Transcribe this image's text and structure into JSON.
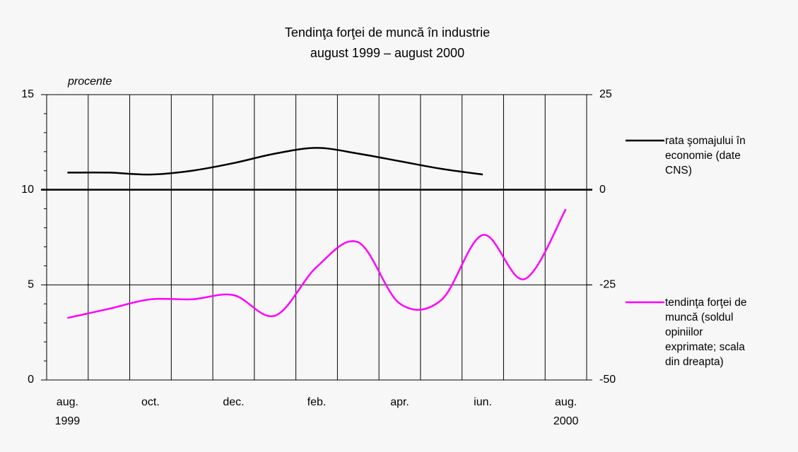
{
  "chart_data": {
    "type": "line",
    "title": "Tendinţa forţei de muncă în industrie",
    "subtitle": "august 1999 – august 2000",
    "y_label": "procente",
    "categories": [
      "aug. 1999",
      null,
      "oct.",
      null,
      "dec.",
      null,
      "feb.",
      null,
      "apr.",
      null,
      "iun.",
      null,
      "aug. 2000"
    ],
    "ylim": [
      0,
      15
    ],
    "yticks": [
      0,
      5,
      10,
      15
    ],
    "y2lim": [
      -50,
      25
    ],
    "y2ticks": [
      -50,
      -25,
      0,
      25
    ],
    "grid": true,
    "series": [
      {
        "name": "rata şomajului în economie (date CNS)",
        "color": "#000000",
        "values": [
          10.9,
          10.9,
          10.8,
          11.0,
          11.4,
          11.9,
          12.2,
          11.9,
          11.5,
          11.1,
          10.8,
          null,
          null
        ]
      },
      {
        "name": "tendinţa forţei de muncă (soldul opiniilor exprimate; scala din dreapta)",
        "color": "#ff00ff",
        "axis": "y2",
        "values": [
          -33.7,
          -31.3,
          -28.8,
          -28.8,
          -27.7,
          -33.1,
          -20.3,
          -13.8,
          -29.9,
          -29.0,
          -11.9,
          -23.5,
          -5.1
        ]
      }
    ]
  }
}
